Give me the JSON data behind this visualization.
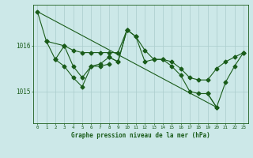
{
  "title": "Graphe pression niveau de la mer (hPa)",
  "bg_color": "#cce8e8",
  "plot_bg_color": "#cce8e8",
  "line_color": "#1a5c1a",
  "grid_color": "#aacccc",
  "text_color": "#1a5c1a",
  "ylim": [
    1014.3,
    1016.9
  ],
  "xlim": [
    -0.5,
    23.5
  ],
  "yticks": [
    1015,
    1016
  ],
  "xticks": [
    0,
    1,
    2,
    3,
    4,
    5,
    6,
    7,
    8,
    9,
    10,
    11,
    12,
    13,
    14,
    15,
    16,
    17,
    18,
    19,
    20,
    21,
    22,
    23
  ],
  "s1_x": [
    0,
    1,
    2,
    3,
    4,
    5,
    6,
    7,
    8,
    9,
    10
  ],
  "s1_y": [
    1016.75,
    1016.1,
    1015.7,
    1016.0,
    1015.55,
    1015.3,
    1015.55,
    1015.6,
    1015.75,
    1015.65,
    1016.35
  ],
  "s2_x": [
    1,
    3,
    4,
    5,
    6,
    7,
    8,
    9,
    10,
    11,
    12,
    13,
    14,
    15,
    16,
    17,
    18,
    19,
    20,
    21,
    22,
    23
  ],
  "s2_y": [
    1016.1,
    1016.0,
    1015.9,
    1015.85,
    1015.85,
    1015.85,
    1015.85,
    1015.85,
    1016.35,
    1016.2,
    1015.9,
    1015.7,
    1015.7,
    1015.65,
    1015.5,
    1015.3,
    1015.25,
    1015.25,
    1015.5,
    1015.65,
    1015.75,
    1015.85
  ],
  "s3_x": [
    2,
    3,
    4,
    5,
    6,
    7,
    8
  ],
  "s3_y": [
    1015.7,
    1015.55,
    1015.3,
    1015.1,
    1015.55,
    1015.55,
    1015.6
  ],
  "s4_x": [
    8,
    9,
    10,
    11,
    12,
    13,
    14,
    15,
    16,
    17,
    18,
    19,
    20
  ],
  "s4_y": [
    1015.75,
    1015.65,
    1016.35,
    1016.2,
    1015.65,
    1015.7,
    1015.7,
    1015.55,
    1015.35,
    1015.0,
    1014.95,
    1014.95,
    1014.65
  ],
  "s5_x": [
    19,
    20,
    21,
    22,
    23
  ],
  "s5_y": [
    1014.95,
    1014.65,
    1015.2,
    1015.55,
    1015.85
  ],
  "decline_x": [
    0,
    20
  ],
  "decline_y": [
    1016.75,
    1014.65
  ]
}
